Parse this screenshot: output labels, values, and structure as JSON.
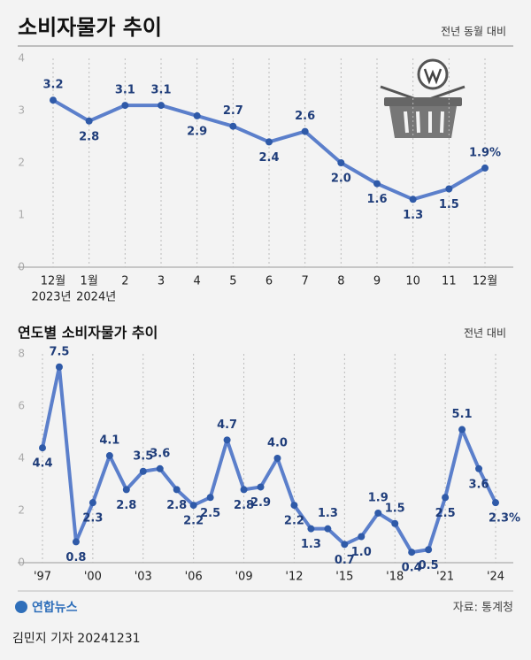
{
  "title": "소비자물가 추이",
  "source": "자료: 통계청",
  "logo": "연합뉴스",
  "byline": "김민지 기자  20241231",
  "chart_data": [
    {
      "type": "line",
      "unit_label": "전년 동월 대비",
      "categories": [
        "12월",
        "1월",
        "2",
        "3",
        "4",
        "5",
        "6",
        "7",
        "8",
        "9",
        "10",
        "11",
        "12월"
      ],
      "x_sublabels": [
        "2023년",
        "2024년",
        null,
        null,
        null,
        null,
        null,
        null,
        null,
        null,
        null,
        null,
        null
      ],
      "values": [
        3.2,
        2.8,
        3.1,
        3.1,
        2.9,
        2.7,
        2.4,
        2.6,
        2.0,
        1.6,
        1.3,
        1.5,
        1.9
      ],
      "value_labels": [
        "3.2",
        "2.8",
        "3.1",
        "3.1",
        "2.9",
        "2.7",
        "2.4",
        "2.6",
        "2.0",
        "1.6",
        "1.3",
        "1.5",
        "1.9%"
      ],
      "color": "#5b7fcb",
      "ylim": [
        0,
        4
      ],
      "yticks": [
        0,
        1,
        2,
        3,
        4
      ]
    },
    {
      "type": "line",
      "title": "연도별 소비자물가 추이",
      "unit_label": "전년 대비",
      "categories": [
        "'97",
        null,
        null,
        "'00",
        null,
        null,
        "'03",
        null,
        null,
        "'06",
        null,
        null,
        "'09",
        null,
        null,
        "'12",
        null,
        null,
        "'15",
        null,
        null,
        "'18",
        null,
        null,
        "'21",
        null,
        null,
        "'24"
      ],
      "values": [
        4.4,
        7.5,
        0.8,
        2.3,
        4.1,
        2.8,
        3.5,
        3.6,
        2.8,
        2.2,
        2.5,
        4.7,
        2.8,
        2.9,
        4.0,
        2.2,
        1.3,
        1.3,
        0.7,
        1.0,
        1.9,
        1.5,
        0.4,
        0.5,
        2.5,
        5.1,
        3.6,
        2.3
      ],
      "value_labels": [
        "4.4",
        "7.5",
        "0.8",
        "2.3",
        "4.1",
        "2.8",
        "3.5",
        "3.6",
        "2.8",
        "2.2",
        "2.5",
        "4.7",
        "2.8",
        "2.9",
        "4.0",
        "2.2",
        "1.3",
        "1.3",
        "0.7",
        "1.0",
        "1.9",
        "1.5",
        "0.4",
        "0.5",
        "2.5",
        "5.1",
        "3.6",
        "2.3%"
      ],
      "color": "#5b7fcb",
      "ylim": [
        0,
        8
      ],
      "yticks": [
        0,
        2,
        4,
        6,
        8
      ]
    }
  ]
}
